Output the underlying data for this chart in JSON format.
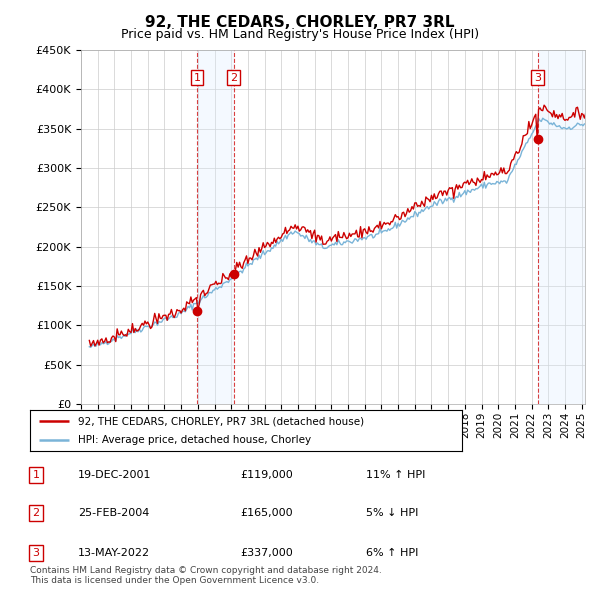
{
  "title": "92, THE CEDARS, CHORLEY, PR7 3RL",
  "subtitle": "Price paid vs. HM Land Registry's House Price Index (HPI)",
  "ylim": [
    0,
    450000
  ],
  "xlim_start": 1995.5,
  "xlim_end": 2025.2,
  "legend_line1": "92, THE CEDARS, CHORLEY, PR7 3RL (detached house)",
  "legend_line2": "HPI: Average price, detached house, Chorley",
  "transactions": [
    {
      "num": 1,
      "date": "19-DEC-2001",
      "price": 119000,
      "pct": "11%",
      "dir": "↑",
      "x": 2001.96
    },
    {
      "num": 2,
      "date": "25-FEB-2004",
      "price": 165000,
      "pct": "5%",
      "dir": "↓",
      "x": 2004.15
    },
    {
      "num": 3,
      "date": "13-MAY-2022",
      "price": 337000,
      "pct": "6%",
      "dir": "↑",
      "x": 2022.37
    }
  ],
  "footnote1": "Contains HM Land Registry data © Crown copyright and database right 2024.",
  "footnote2": "This data is licensed under the Open Government Licence v3.0.",
  "hpi_color": "#7ab4d8",
  "price_color": "#cc0000",
  "transaction_box_color": "#cc0000",
  "shade_color": "#ddeeff",
  "grid_color": "#cccccc",
  "background_color": "#ffffff"
}
